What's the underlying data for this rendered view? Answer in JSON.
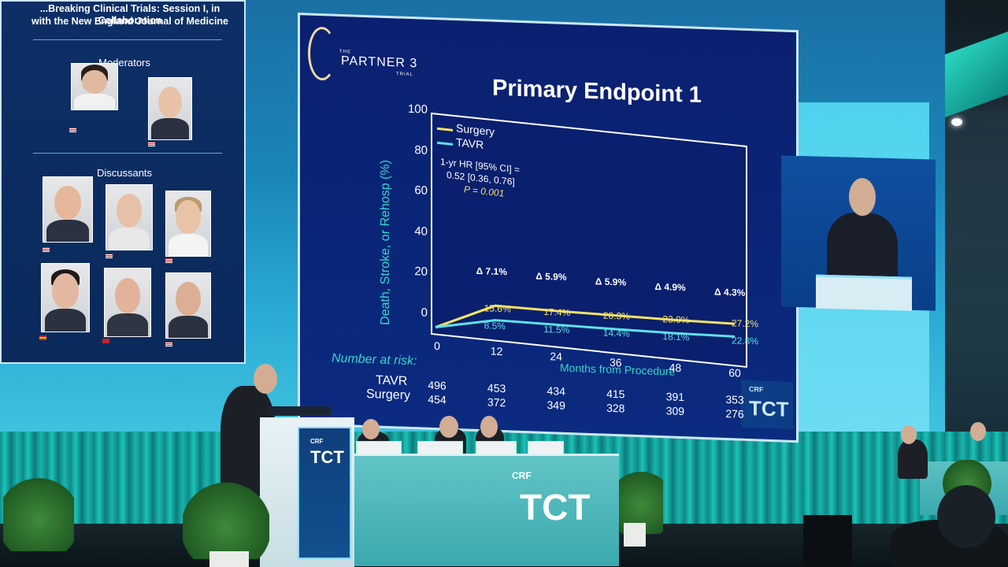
{
  "left_slide": {
    "title_line1": "...Breaking Clinical Trials: Session I, in Collaboration",
    "title_line2": "with the New England Journal of Medicine",
    "moderators_heading": "Moderators",
    "discussants_heading": "Discussants"
  },
  "main_slide": {
    "logo_text": "PARTNER 3",
    "logo_prefix": "THE",
    "logo_suffix": "TRIAL",
    "title": "Primary Endpoint 1",
    "y_axis_label": "Death, Stroke, or Rehosp (%)",
    "x_axis_label": "Months from Procedure",
    "y_ticks": [
      "100",
      "80",
      "60",
      "40",
      "20",
      "0"
    ],
    "x_ticks": [
      "0",
      "12",
      "24",
      "36",
      "48",
      "60"
    ],
    "legend": [
      {
        "name": "Surgery",
        "color": "#f5e266"
      },
      {
        "name": "TAVR",
        "color": "#5fe0e8"
      }
    ],
    "hr_line1": "1-yr HR [95% CI] =",
    "hr_line2": "0.52 [0.36, 0.76]",
    "p_value": "P = 0.001",
    "deltas": [
      "Δ 7.1%",
      "Δ 5.9%",
      "Δ 5.9%",
      "Δ 4.9%",
      "Δ 4.3%"
    ],
    "surgery_labels": [
      "15.6%",
      "17.4%",
      "20.3%",
      "23.0%",
      "27.2%"
    ],
    "tavr_labels": [
      "8.5%",
      "11.5%",
      "14.4%",
      "18.1%",
      "22.8%"
    ],
    "risk_heading": "Number at risk:",
    "risk_rows": [
      {
        "name": "TAVR",
        "values": [
          "496",
          "453",
          "434",
          "415",
          "391",
          "353"
        ]
      },
      {
        "name": "Surgery",
        "values": [
          "454",
          "372",
          "349",
          "328",
          "309",
          "276"
        ]
      }
    ],
    "corner_logo": "TCT",
    "corner_logo_small": "CRF"
  },
  "stage": {
    "podium_logo": "TCT",
    "podium_small": "CRF",
    "desk_logo": "TCT",
    "desk_small": "CRF"
  },
  "chart_data": {
    "type": "line",
    "title": "Primary Endpoint 1",
    "xlabel": "Months from Procedure",
    "ylabel": "Death, Stroke, or Rehosp (%)",
    "xlim": [
      0,
      60
    ],
    "ylim": [
      0,
      100
    ],
    "x": [
      0,
      12,
      24,
      36,
      48,
      60
    ],
    "series": [
      {
        "name": "Surgery",
        "values": [
          0,
          15.6,
          17.4,
          20.3,
          23.0,
          27.2
        ]
      },
      {
        "name": "TAVR",
        "values": [
          0,
          8.5,
          11.5,
          14.4,
          18.1,
          22.8
        ]
      }
    ],
    "annotations": [
      "Δ 7.1%",
      "Δ 5.9%",
      "Δ 5.9%",
      "Δ 4.9%",
      "Δ 4.3%"
    ],
    "legend": "top-left"
  }
}
